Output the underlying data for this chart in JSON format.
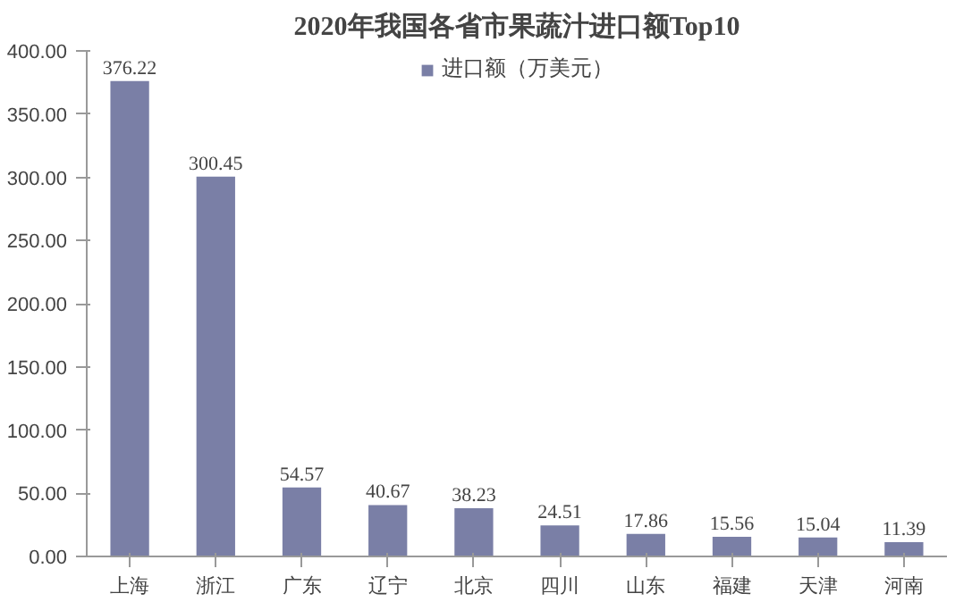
{
  "chart_data": {
    "type": "bar",
    "title": "2020年我国各省市果蔬汁进口额Top10",
    "categories": [
      "上海",
      "浙江",
      "广东",
      "辽宁",
      "北京",
      "四川",
      "山东",
      "福建",
      "天津",
      "河南"
    ],
    "series": [
      {
        "name": "进口额（万美元）",
        "color": "#7a7fa6",
        "values": [
          376.22,
          300.45,
          54.57,
          40.67,
          38.23,
          24.51,
          17.86,
          15.56,
          15.04,
          11.39
        ]
      }
    ],
    "data_labels": true,
    "legend": "top",
    "grid": false,
    "ylim": [
      0,
      400
    ],
    "yticks": [
      {
        "value": 0,
        "label": "0.00"
      },
      {
        "value": 50,
        "label": "50.00"
      },
      {
        "value": 100,
        "label": "100.00"
      },
      {
        "value": 150,
        "label": "150.00"
      },
      {
        "value": 200,
        "label": "200.00"
      },
      {
        "value": 250,
        "label": "250.00"
      },
      {
        "value": 300,
        "label": "300.00"
      },
      {
        "value": 350,
        "label": "350.00"
      },
      {
        "value": 400,
        "label": "400.00"
      }
    ]
  }
}
